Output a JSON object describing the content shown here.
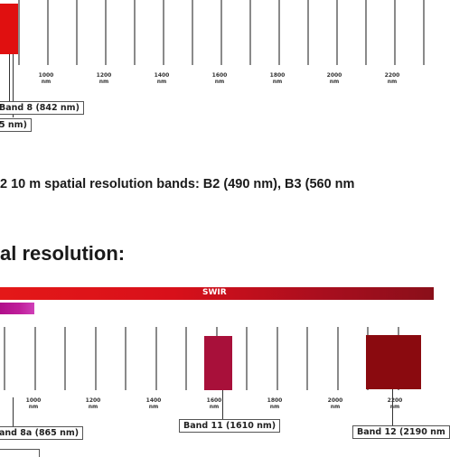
{
  "top_panel": {
    "ticks": [
      "1000\nnm",
      "1200\nnm",
      "1400\nnm",
      "1600\nnm",
      "1800\nnm",
      "2000\nnm",
      "2200\nnm"
    ],
    "band_labels": [
      "Band 8 (842 nm)",
      "5 nm)"
    ],
    "colors": {
      "band8": "#e01010"
    }
  },
  "caption": "2 10 m spatial resolution bands: B2 (490 nm), B3 (560 nm",
  "heading": "al resolution:",
  "bottom_panel": {
    "swir_label": "SWIR",
    "ticks": [
      "1000\nnm",
      "1200\nnm",
      "1400\nnm",
      "1600\nnm",
      "1800\nnm",
      "2000\nnm",
      "2200\nnm"
    ],
    "band_labels": [
      "and 8a (865 nm)",
      "Band 11 (1610 nm)",
      "Band 12 (2190 nm"
    ],
    "colors": {
      "band11": "#a8103a",
      "band12": "#8a0a0f"
    }
  }
}
